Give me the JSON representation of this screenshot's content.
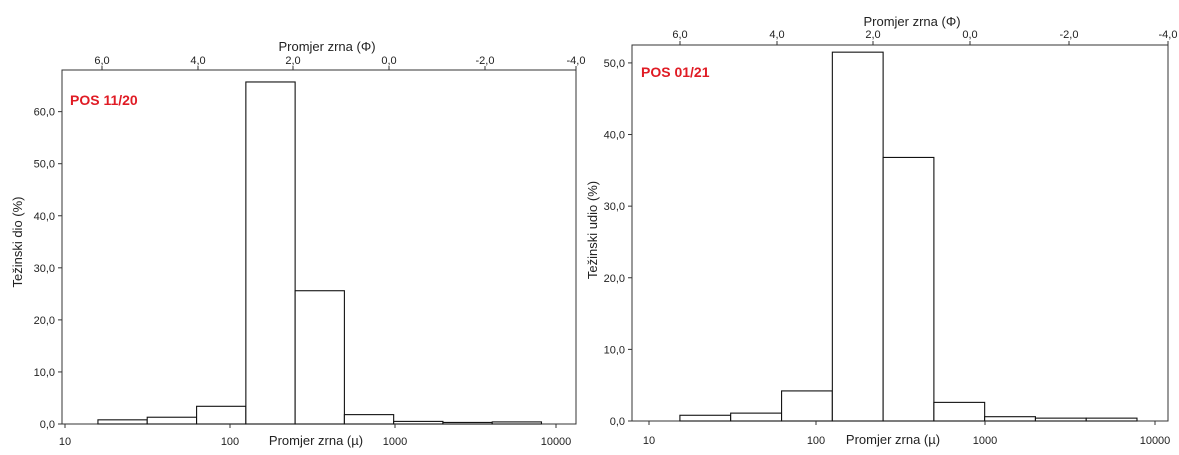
{
  "sample_color": "#e01b24",
  "chart_data": [
    {
      "type": "bar",
      "subtype": "histogram",
      "sample_label": "POS 11/20",
      "xlabel": "Promjer zrna (µ)",
      "x2label": "Promjer zrna (Φ)",
      "ylabel": "Težinski dio (%)",
      "x_scale": "log",
      "xlim": [
        8,
        10000
      ],
      "ylim": [
        0,
        68
      ],
      "xticks": [
        "10",
        "100",
        "1000",
        "10000"
      ],
      "xticks_phi": [
        "6,0",
        "4,0",
        "2,0",
        "0,0",
        "-2,0",
        "-4,0"
      ],
      "yticks": [
        "0,0",
        "10,0",
        "20,0",
        "30,0",
        "40,0",
        "50,0",
        "60,0"
      ],
      "bins": [
        {
          "from": 15.6,
          "to": 31.2,
          "value": 0.8
        },
        {
          "from": 31.2,
          "to": 62.5,
          "value": 1.3
        },
        {
          "from": 62.5,
          "to": 125,
          "value": 3.4
        },
        {
          "from": 125,
          "to": 250,
          "value": 65.7
        },
        {
          "from": 250,
          "to": 500,
          "value": 25.6
        },
        {
          "from": 500,
          "to": 1000,
          "value": 1.8
        },
        {
          "from": 1000,
          "to": 2000,
          "value": 0.5
        },
        {
          "from": 2000,
          "to": 4000,
          "value": 0.3
        },
        {
          "from": 4000,
          "to": 8000,
          "value": 0.4
        }
      ]
    },
    {
      "type": "bar",
      "subtype": "histogram",
      "sample_label": "POS 01/21",
      "xlabel": "Promjer zrna (µ)",
      "x2label": "Promjer zrna (Φ)",
      "ylabel": "Težinski udio (%)",
      "x_scale": "log",
      "xlim": [
        8,
        12000
      ],
      "ylim": [
        0,
        52.5
      ],
      "xticks": [
        "10",
        "100",
        "1000",
        "10000"
      ],
      "xticks_phi": [
        "6,0",
        "4,0",
        "2,0",
        "0,0",
        "-2,0",
        "-4,0"
      ],
      "yticks": [
        "0,0",
        "10,0",
        "20,0",
        "30,0",
        "40,0",
        "50,0"
      ],
      "bins": [
        {
          "from": 15.6,
          "to": 31.2,
          "value": 0.8
        },
        {
          "from": 31.2,
          "to": 62.5,
          "value": 1.1
        },
        {
          "from": 62.5,
          "to": 125,
          "value": 4.2
        },
        {
          "from": 125,
          "to": 250,
          "value": 51.5
        },
        {
          "from": 250,
          "to": 500,
          "value": 36.8
        },
        {
          "from": 500,
          "to": 1000,
          "value": 2.6
        },
        {
          "from": 1000,
          "to": 2000,
          "value": 0.6
        },
        {
          "from": 2000,
          "to": 4000,
          "value": 0.4
        },
        {
          "from": 4000,
          "to": 8000,
          "value": 0.4
        }
      ]
    }
  ]
}
